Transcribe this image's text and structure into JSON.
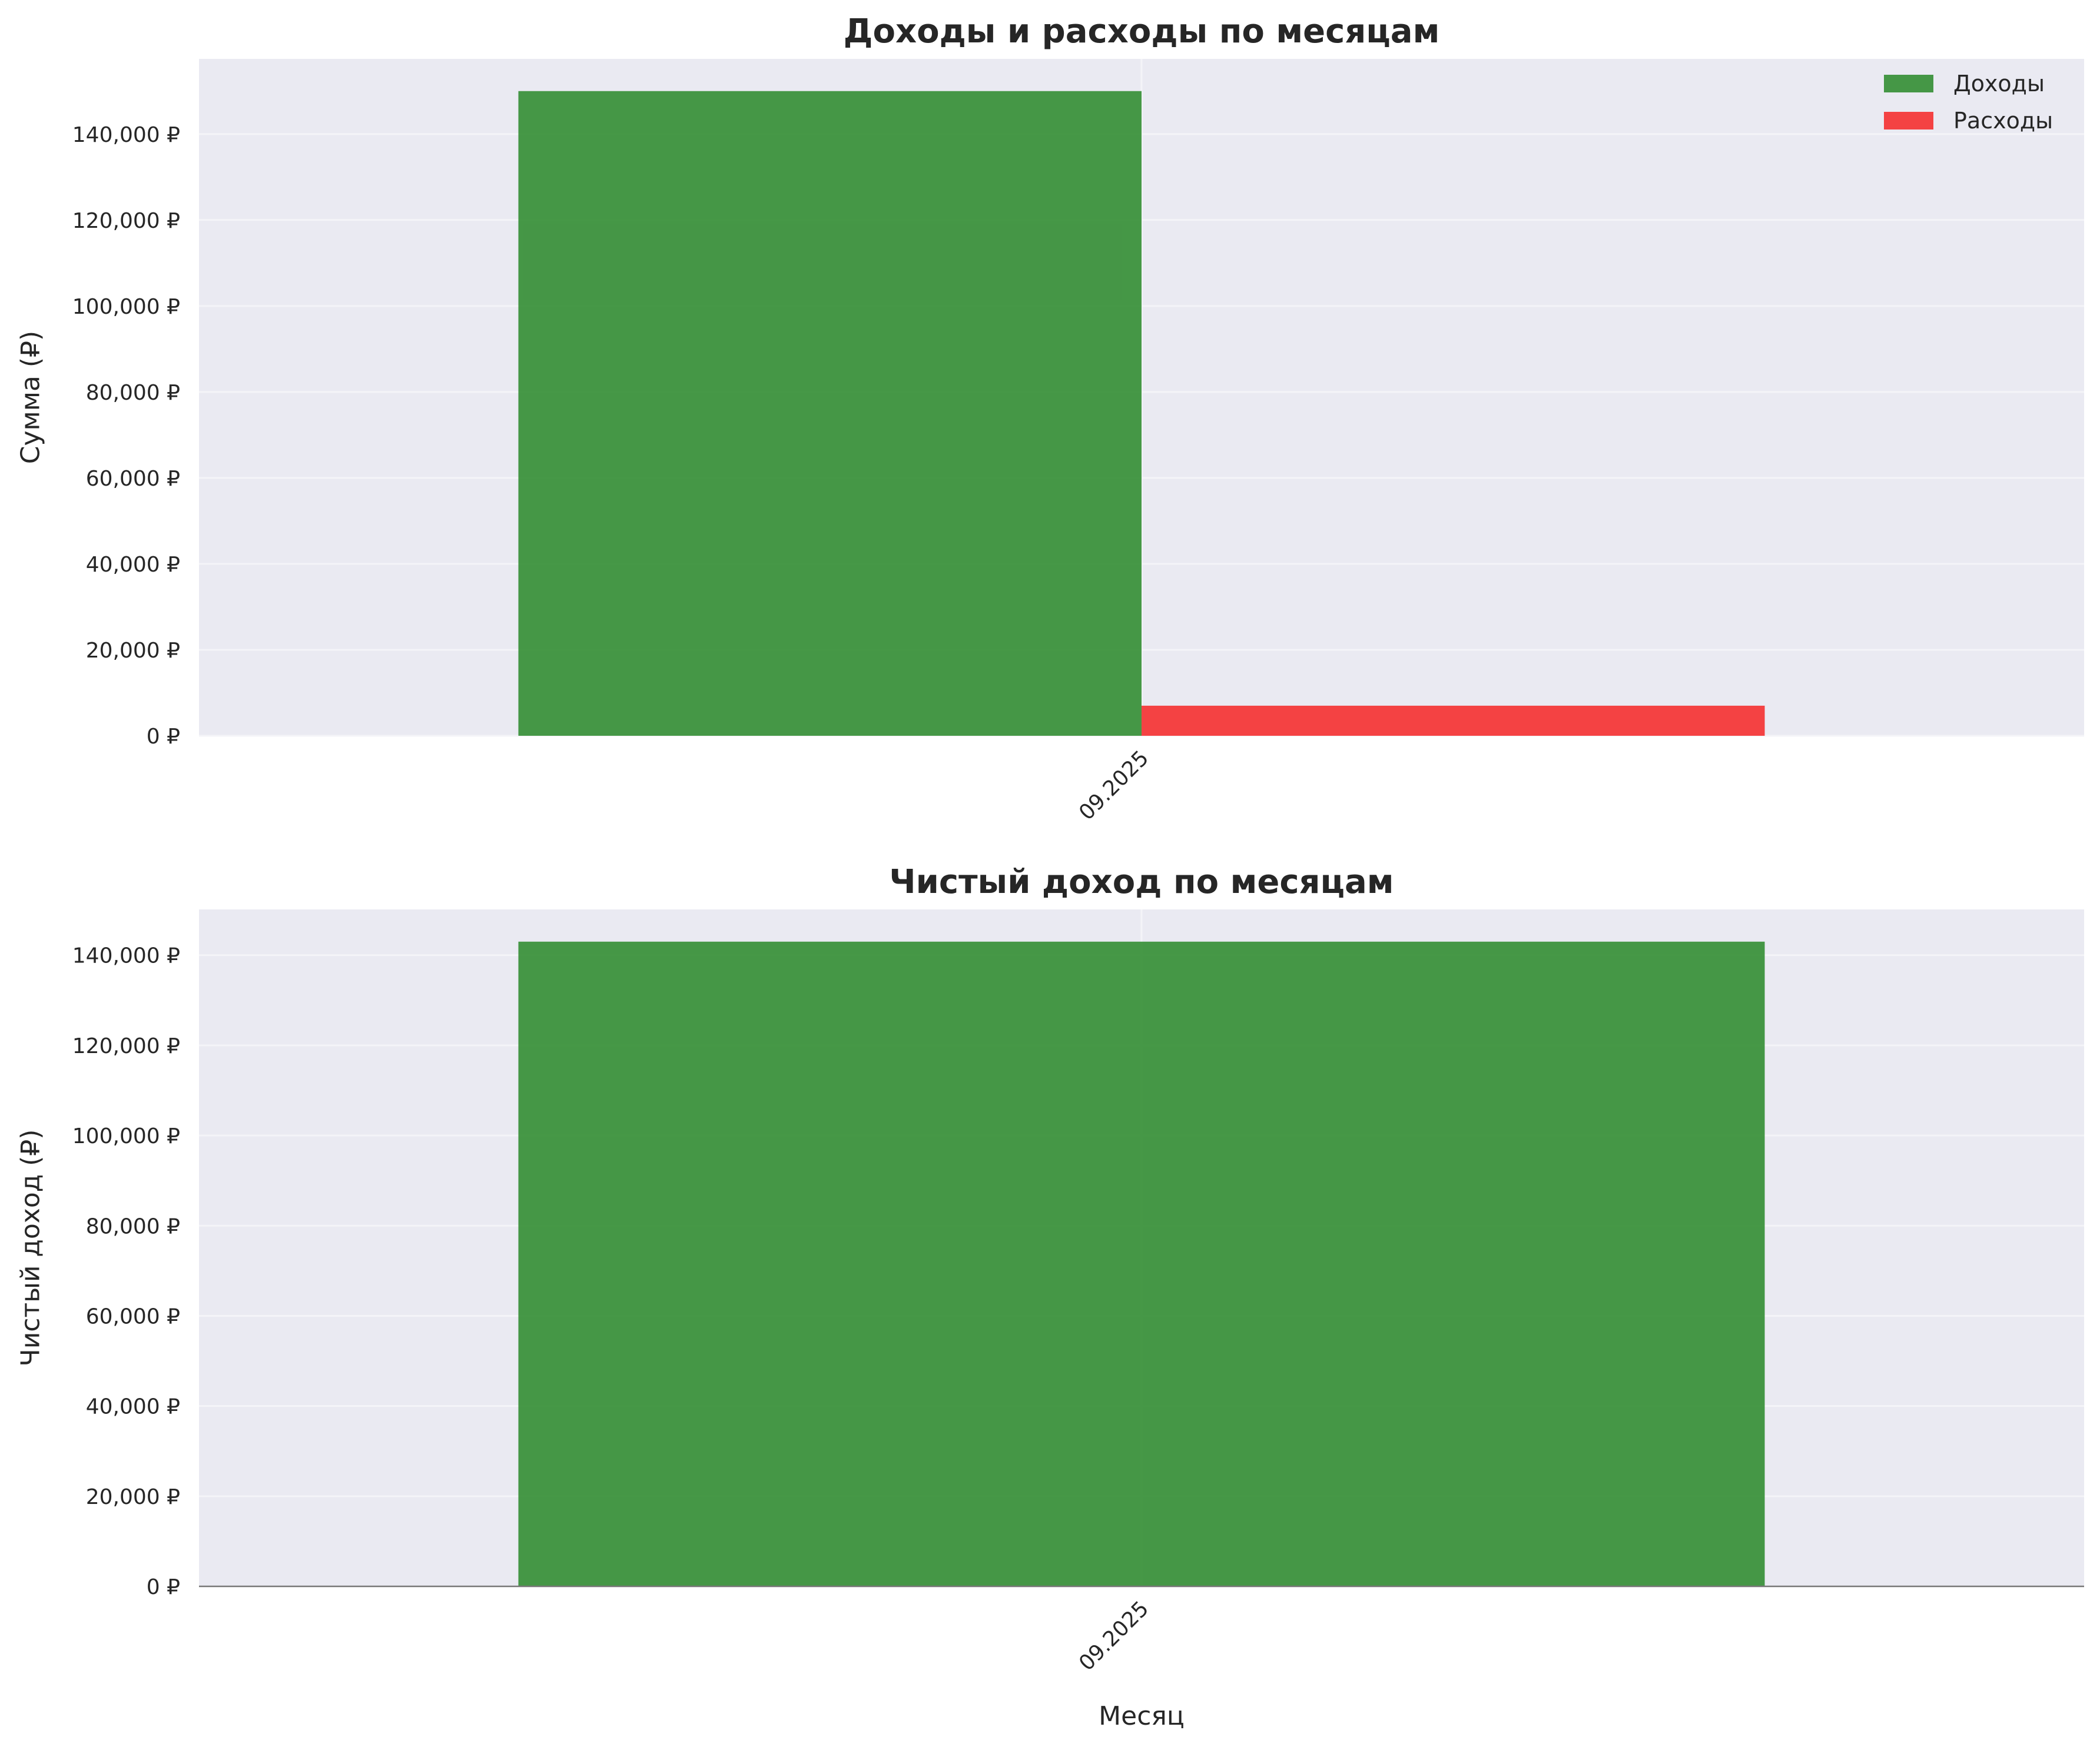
{
  "colors": {
    "background": "#ffffff",
    "plot_background": "#eaeaf2",
    "grid": "#f4f4f8",
    "income": "#2e8b2e",
    "expense": "#f52a2a",
    "text": "#262626"
  },
  "chart_data": [
    {
      "type": "bar",
      "title": "Доходы и расходы по месяцам",
      "xlabel": "",
      "ylabel": "Сумма (₽)",
      "categories": [
        "09.2025"
      ],
      "series": [
        {
          "name": "Доходы",
          "values": [
            150000
          ],
          "color": "#2e8b2e"
        },
        {
          "name": "Расходы",
          "values": [
            7000
          ],
          "color": "#f52a2a"
        }
      ],
      "ylim": [
        0,
        157500
      ],
      "yticks": [
        0,
        20000,
        40000,
        60000,
        80000,
        100000,
        120000,
        140000
      ],
      "ytick_labels": [
        "0 ₽",
        "20,000 ₽",
        "40,000 ₽",
        "60,000 ₽",
        "80,000 ₽",
        "100,000 ₽",
        "120,000 ₽",
        "140,000 ₽"
      ],
      "grid": true,
      "legend": {
        "placement": "top-right",
        "entries": [
          "Доходы",
          "Расходы"
        ]
      }
    },
    {
      "type": "bar",
      "title": "Чистый доход по месяцам",
      "xlabel": "Месяц",
      "ylabel": "Чистый доход (₽)",
      "categories": [
        "09.2025"
      ],
      "series": [
        {
          "values": [
            143000
          ],
          "color": "#2e8b2e"
        }
      ],
      "ylim": [
        0,
        150150
      ],
      "yticks": [
        0,
        20000,
        40000,
        60000,
        80000,
        100000,
        120000,
        140000
      ],
      "ytick_labels": [
        "0 ₽",
        "20,000 ₽",
        "40,000 ₽",
        "60,000 ₽",
        "80,000 ₽",
        "100,000 ₽",
        "120,000 ₽",
        "140,000 ₽"
      ],
      "grid": true,
      "zero_line": true
    }
  ]
}
